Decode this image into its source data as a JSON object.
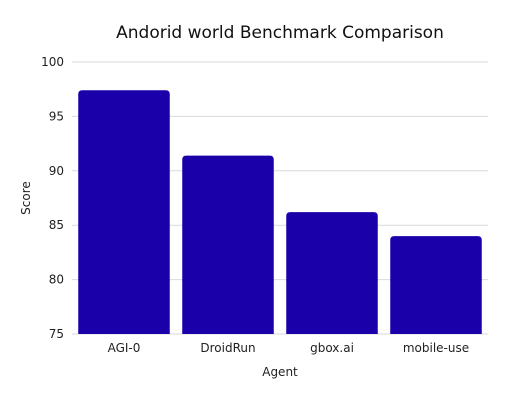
{
  "chart_data": {
    "type": "bar",
    "title": "Andorid world Benchmark Comparison",
    "xlabel": "Agent",
    "ylabel": "Score",
    "categories": [
      "AGI-0",
      "DroidRun",
      "gbox.ai",
      "mobile-use"
    ],
    "values": [
      97.4,
      91.4,
      86.2,
      84.0
    ],
    "ylim": [
      75,
      100
    ],
    "yticks": [
      75,
      80,
      85,
      90,
      95,
      100
    ],
    "grid": true,
    "legend": "none",
    "bar_color": "#1a00a8"
  }
}
